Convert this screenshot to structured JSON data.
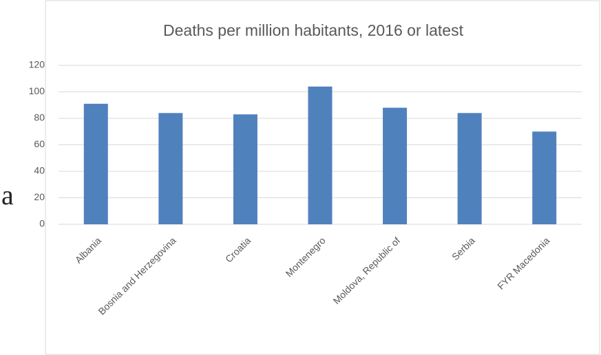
{
  "fragment": "a",
  "chart_data": {
    "type": "bar",
    "title": "Deaths per million habitants, 2016 or latest",
    "categories": [
      "Albania",
      "Bosnia and Herzegovina",
      "Croatia",
      "Montenegro",
      "Moldova, Republic of",
      "Serbia",
      "FYR Macedonia"
    ],
    "values": [
      91,
      84,
      83,
      104,
      88,
      84,
      70
    ],
    "color": "#4f81bd",
    "ylim": [
      0,
      120
    ],
    "yticks": [
      0,
      20,
      40,
      60,
      80,
      100,
      120
    ],
    "grid": true
  }
}
